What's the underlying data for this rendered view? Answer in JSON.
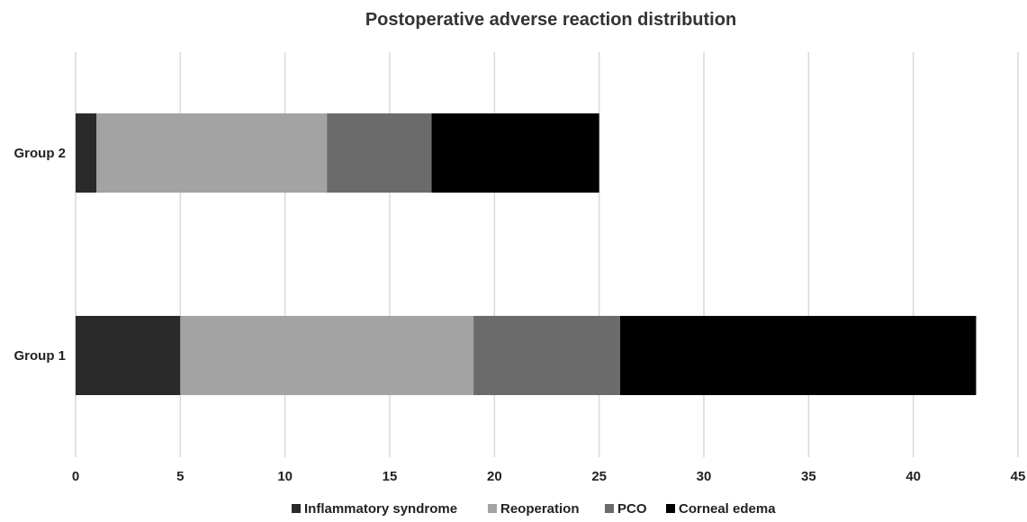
{
  "chart_data": {
    "type": "bar",
    "orientation": "horizontal",
    "stacked": true,
    "title": "Postoperative adverse reaction distribution",
    "xlabel": "",
    "ylabel": "",
    "categories": [
      "Group 2",
      "Group 1"
    ],
    "series": [
      {
        "name": "Inflammatory syndrome",
        "values": [
          1,
          5
        ],
        "color": "#2a2a2a"
      },
      {
        "name": "Reoperation",
        "values": [
          11,
          14
        ],
        "color": "#a3a3a3"
      },
      {
        "name": "PCO",
        "values": [
          5,
          7
        ],
        "color": "#6b6b6b"
      },
      {
        "name": "Corneal edema",
        "values": [
          8,
          17
        ],
        "color": "#000000"
      }
    ],
    "xlim": [
      0,
      45
    ],
    "xticks": [
      "0",
      "5",
      "10",
      "15",
      "20",
      "25",
      "30",
      "35",
      "40",
      "45"
    ],
    "grid": true,
    "legend_position": "bottom"
  }
}
